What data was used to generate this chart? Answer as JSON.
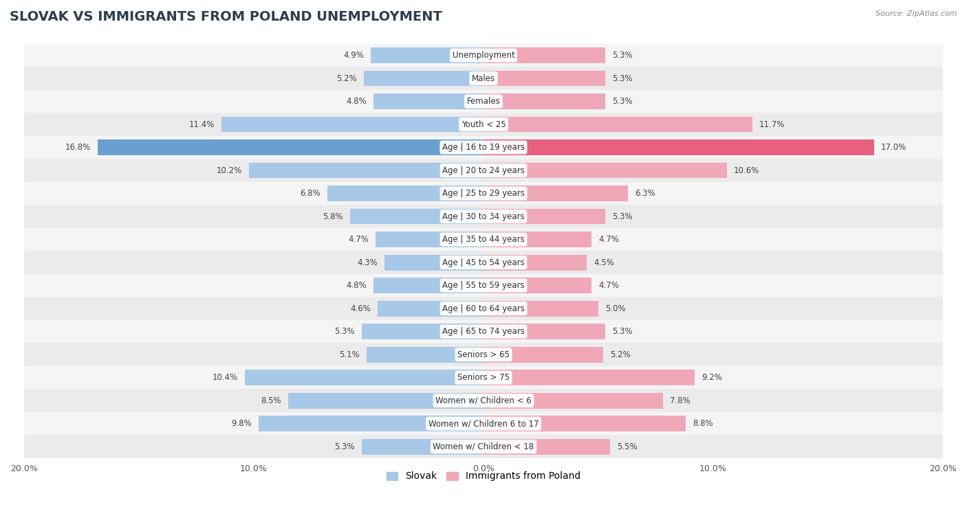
{
  "title": "SLOVAK VS IMMIGRANTS FROM POLAND UNEMPLOYMENT",
  "source": "Source: ZipAtlas.com",
  "categories": [
    "Unemployment",
    "Males",
    "Females",
    "Youth < 25",
    "Age | 16 to 19 years",
    "Age | 20 to 24 years",
    "Age | 25 to 29 years",
    "Age | 30 to 34 years",
    "Age | 35 to 44 years",
    "Age | 45 to 54 years",
    "Age | 55 to 59 years",
    "Age | 60 to 64 years",
    "Age | 65 to 74 years",
    "Seniors > 65",
    "Seniors > 75",
    "Women w/ Children < 6",
    "Women w/ Children 6 to 17",
    "Women w/ Children < 18"
  ],
  "slovak_values": [
    4.9,
    5.2,
    4.8,
    11.4,
    16.8,
    10.2,
    6.8,
    5.8,
    4.7,
    4.3,
    4.8,
    4.6,
    5.3,
    5.1,
    10.4,
    8.5,
    9.8,
    5.3
  ],
  "poland_values": [
    5.3,
    5.3,
    5.3,
    11.7,
    17.0,
    10.6,
    6.3,
    5.3,
    4.7,
    4.5,
    4.7,
    5.0,
    5.3,
    5.2,
    9.2,
    7.8,
    8.8,
    5.5
  ],
  "slovak_color_normal": "#a8c8e8",
  "slovak_color_highlight": "#6aa0d0",
  "poland_color_normal": "#f0a8b8",
  "poland_color_highlight": "#e86080",
  "max_value": 20.0,
  "row_bg_light": "#f0f0f0",
  "row_bg_dark": "#e0e0e0",
  "bar_height": 0.68,
  "label_fontsize": 8.5,
  "category_fontsize": 8.5,
  "title_fontsize": 14,
  "legend_entries": [
    "Slovak",
    "Immigrants from Poland"
  ],
  "highlight_idx": 4
}
